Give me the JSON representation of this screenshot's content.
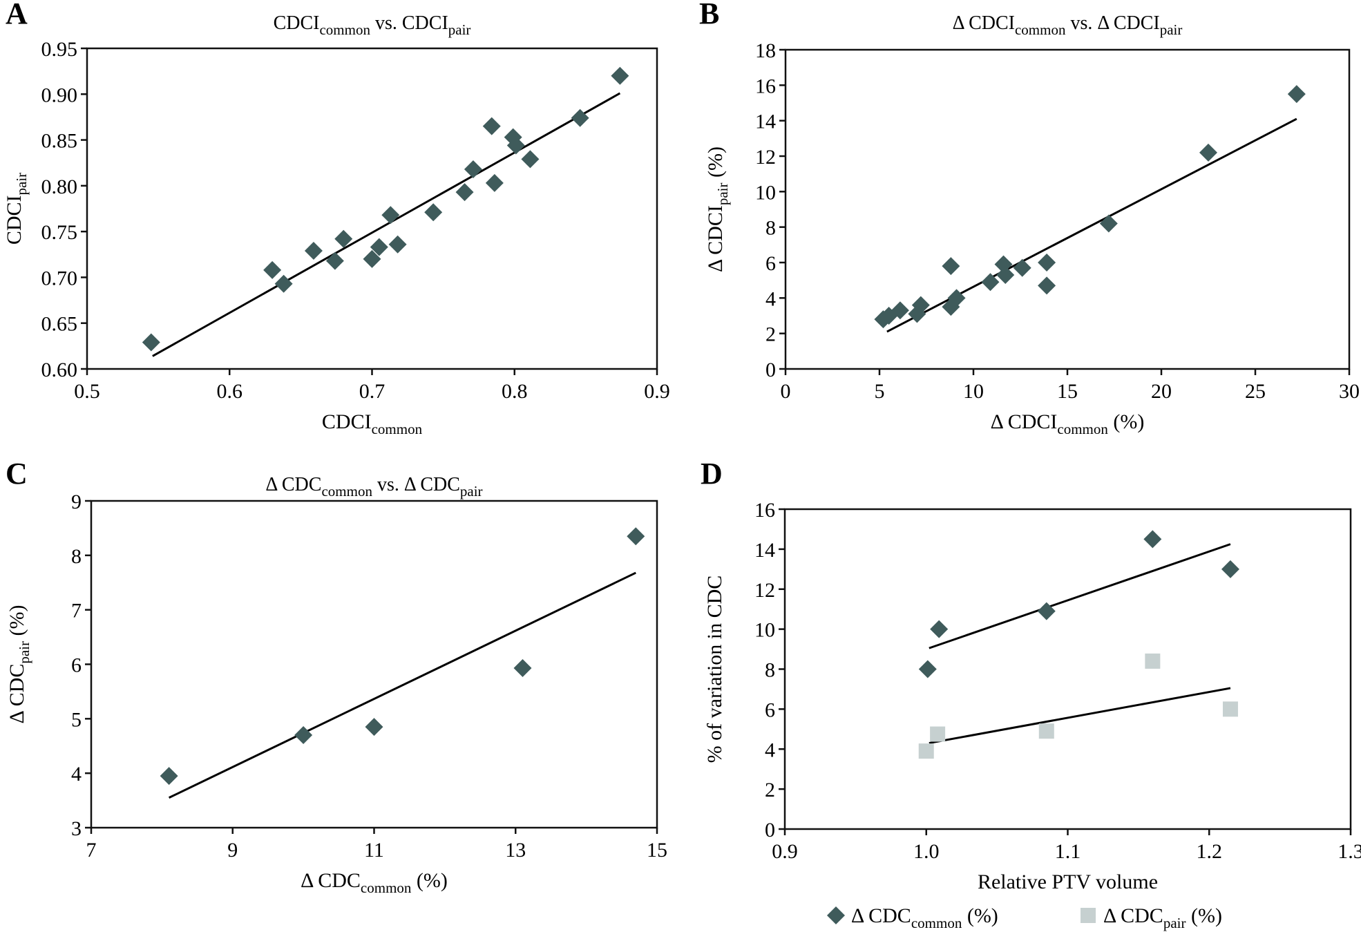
{
  "colors": {
    "diamond": "#3f5b5b",
    "square": "#c6d0d0",
    "axis": "#111111",
    "fit": "#000000"
  },
  "chart_data": [
    {
      "id": "A",
      "panel_label": "A",
      "type": "scatter",
      "title": {
        "main": "CDCI",
        "sub1": "common",
        "mid": " vs. CDCI",
        "sub2": "pair"
      },
      "xlabel": {
        "main": "CDCI",
        "sub": "common",
        "suffix": ""
      },
      "ylabel": {
        "main": "CDCI",
        "sub": "pair",
        "suffix": ""
      },
      "xlim": [
        0.5,
        0.9
      ],
      "ylim": [
        0.6,
        0.95
      ],
      "xticks": [
        0.5,
        0.6,
        0.7,
        0.8,
        0.9
      ],
      "xtick_labels": [
        "0.5",
        "0.6",
        "0.7",
        "0.8",
        "0.9"
      ],
      "yticks": [
        0.6,
        0.65,
        0.7,
        0.75,
        0.8,
        0.85,
        0.9,
        0.95
      ],
      "ytick_labels": [
        "0.60",
        "0.65",
        "0.70",
        "0.75",
        "0.80",
        "0.85",
        "0.90",
        "0.95"
      ],
      "grid": false,
      "series": [
        {
          "name": "CDCI",
          "marker": "diamond",
          "x": [
            0.545,
            0.63,
            0.638,
            0.659,
            0.674,
            0.68,
            0.7,
            0.705,
            0.713,
            0.718,
            0.743,
            0.765,
            0.771,
            0.784,
            0.786,
            0.799,
            0.801,
            0.811,
            0.846,
            0.874
          ],
          "y": [
            0.629,
            0.708,
            0.693,
            0.729,
            0.718,
            0.742,
            0.72,
            0.733,
            0.768,
            0.736,
            0.771,
            0.793,
            0.818,
            0.865,
            0.803,
            0.853,
            0.844,
            0.829,
            0.874,
            0.92
          ],
          "fit": {
            "x": [
              0.546,
              0.874
            ],
            "y": [
              0.614,
              0.901
            ]
          }
        }
      ]
    },
    {
      "id": "B",
      "panel_label": "B",
      "type": "scatter",
      "title": {
        "main": "Δ CDCI",
        "sub1": "common",
        "mid": " vs. Δ CDCI",
        "sub2": "pair"
      },
      "xlabel": {
        "main": "Δ CDCI",
        "sub": "common",
        "suffix": " (%)"
      },
      "ylabel": {
        "main": "Δ CDCI",
        "sub": "pair",
        "suffix": " (%)"
      },
      "xlim": [
        0,
        30
      ],
      "ylim": [
        0,
        18
      ],
      "xticks": [
        0,
        5,
        10,
        15,
        20,
        25,
        30
      ],
      "xtick_labels": [
        "0",
        "5",
        "10",
        "15",
        "20",
        "25",
        "30"
      ],
      "yticks": [
        0,
        2,
        4,
        6,
        8,
        10,
        12,
        14,
        16,
        18
      ],
      "ytick_labels": [
        "0",
        "2",
        "4",
        "6",
        "8",
        "10",
        "12",
        "14",
        "16",
        "18"
      ],
      "grid": false,
      "series": [
        {
          "name": "Δ CDCI",
          "marker": "diamond",
          "x": [
            5.2,
            5.5,
            6.1,
            7.0,
            7.2,
            8.8,
            8.8,
            9.1,
            10.9,
            11.6,
            11.7,
            12.6,
            13.9,
            13.9,
            17.2,
            22.5,
            27.2
          ],
          "y": [
            2.8,
            3.0,
            3.3,
            3.1,
            3.6,
            5.8,
            3.5,
            4.0,
            4.9,
            5.9,
            5.3,
            5.7,
            6.0,
            4.7,
            8.2,
            12.2,
            15.5
          ],
          "fit": {
            "x": [
              5.4,
              27.2
            ],
            "y": [
              2.1,
              14.1
            ]
          }
        }
      ]
    },
    {
      "id": "C",
      "panel_label": "C",
      "type": "scatter",
      "title": {
        "main": "Δ CDC",
        "sub1": "common",
        "mid": " vs. Δ CDC",
        "sub2": "pair"
      },
      "xlabel": {
        "main": "Δ CDC",
        "sub": "common",
        "suffix": " (%)"
      },
      "ylabel": {
        "main": "Δ CDC",
        "sub": "pair",
        "suffix": " (%)"
      },
      "xlim": [
        7,
        15
      ],
      "ylim": [
        3,
        9
      ],
      "xticks": [
        7,
        9,
        11,
        13,
        15
      ],
      "xtick_labels": [
        "7",
        "9",
        "11",
        "13",
        "15"
      ],
      "yticks": [
        3,
        4,
        5,
        6,
        7,
        8,
        9
      ],
      "ytick_labels": [
        "3",
        "4",
        "5",
        "6",
        "7",
        "8",
        "9"
      ],
      "grid": false,
      "series": [
        {
          "name": "Δ CDC",
          "marker": "diamond",
          "x": [
            8.1,
            10.0,
            11.0,
            13.1,
            14.7
          ],
          "y": [
            3.95,
            4.7,
            4.85,
            5.93,
            8.35
          ],
          "fit": {
            "x": [
              8.1,
              14.7
            ],
            "y": [
              3.55,
              7.68
            ]
          }
        }
      ]
    },
    {
      "id": "D",
      "panel_label": "D",
      "type": "scatter",
      "title": null,
      "xlabel": {
        "main": "Relative PTV volume",
        "sub": "",
        "suffix": ""
      },
      "ylabel": {
        "main": "% of variation in CDC",
        "sub": "",
        "suffix": ""
      },
      "xlim": [
        0.9,
        1.3
      ],
      "ylim": [
        0,
        16
      ],
      "xticks": [
        0.9,
        1.0,
        1.1,
        1.2,
        1.3
      ],
      "xtick_labels": [
        "0.9",
        "1.0",
        "1.1",
        "1.2",
        "1.3"
      ],
      "yticks": [
        0,
        2,
        4,
        6,
        8,
        10,
        12,
        14,
        16
      ],
      "ytick_labels": [
        "0",
        "2",
        "4",
        "6",
        "8",
        "10",
        "12",
        "14",
        "16"
      ],
      "grid": false,
      "legend": {
        "position": "bottom",
        "entries": [
          {
            "marker": "diamond",
            "main": "Δ CDC",
            "sub": "common",
            "suffix": " (%)"
          },
          {
            "marker": "square",
            "main": "Δ CDC",
            "sub": "pair",
            "suffix": " (%)"
          }
        ]
      },
      "series": [
        {
          "name": "Δ CDC common (%)",
          "marker": "diamond",
          "x": [
            1.001,
            1.009,
            1.085,
            1.16,
            1.215
          ],
          "y": [
            8.0,
            10.0,
            10.9,
            14.5,
            13.0
          ],
          "fit": {
            "x": [
              1.002,
              1.215
            ],
            "y": [
              9.05,
              14.25
            ]
          }
        },
        {
          "name": "Δ CDC pair (%)",
          "marker": "square",
          "x": [
            1.0,
            1.008,
            1.085,
            1.16,
            1.215
          ],
          "y": [
            3.9,
            4.75,
            4.9,
            8.4,
            6.0
          ],
          "fit": {
            "x": [
              1.002,
              1.215
            ],
            "y": [
              4.3,
              7.05
            ]
          }
        }
      ]
    }
  ]
}
